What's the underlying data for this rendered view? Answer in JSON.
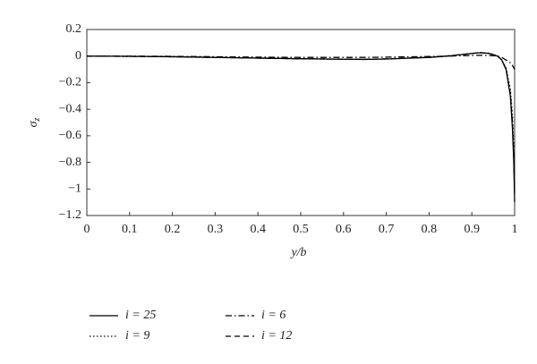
{
  "chart_data": {
    "type": "line",
    "x_label": "y/b",
    "y_label": {
      "symbol": "σ",
      "subscript": "z"
    },
    "x": [
      0,
      0.1,
      0.2,
      0.3,
      0.4,
      0.5,
      0.6,
      0.65,
      0.7,
      0.8,
      0.85,
      0.9,
      0.92,
      0.94,
      0.96,
      0.97,
      0.98,
      0.99,
      0.995,
      0.998,
      1
    ],
    "series": [
      {
        "name": "i = 25",
        "style": "solid",
        "color": "#000",
        "values": [
          0,
          -0.002,
          -0.005,
          -0.01,
          -0.015,
          -0.02,
          -0.024,
          -0.025,
          -0.022,
          -0.01,
          0.002,
          0.02,
          0.025,
          0.02,
          0,
          -0.03,
          -0.1,
          -0.3,
          -0.55,
          -0.8,
          -1.1
        ]
      },
      {
        "name": "i = 9",
        "style": "dotted",
        "color": "#000",
        "values": [
          0,
          -0.002,
          -0.005,
          -0.01,
          -0.015,
          -0.02,
          -0.024,
          -0.025,
          -0.022,
          -0.01,
          0.002,
          0.02,
          0.027,
          0.022,
          0.002,
          -0.03,
          -0.09,
          -0.25,
          -0.45,
          -0.7,
          -1.0
        ]
      },
      {
        "name": "i = 6",
        "style": "dashdot",
        "color": "#000",
        "values": [
          0,
          0,
          -0.002,
          -0.005,
          -0.008,
          -0.01,
          -0.01,
          -0.01,
          -0.008,
          -0.003,
          0,
          0.005,
          0.006,
          0.005,
          0,
          -0.01,
          -0.03,
          -0.05,
          -0.07,
          -0.09,
          -0.1
        ]
      },
      {
        "name": "i = 12",
        "style": "dashed",
        "color": "#000",
        "values": [
          0,
          -0.002,
          -0.005,
          -0.01,
          -0.015,
          -0.02,
          -0.023,
          -0.024,
          -0.021,
          -0.009,
          0.003,
          0.02,
          0.026,
          0.021,
          0.001,
          -0.03,
          -0.1,
          -0.28,
          -0.5,
          -0.75,
          -1.05
        ]
      }
    ],
    "xlim": [
      0,
      1
    ],
    "ylim": [
      -1.2,
      0.2
    ],
    "xticks": [
      0,
      0.1,
      0.2,
      0.3,
      0.4,
      0.5,
      0.6,
      0.7,
      0.8,
      0.9,
      1
    ],
    "yticks": [
      0.2,
      0,
      {
        "value": -0.2,
        "label": "−0.2"
      },
      {
        "value": -0.4,
        "label": "−0.4"
      },
      {
        "value": -0.6,
        "label": "−0.6"
      },
      {
        "value": -0.8,
        "label": "−0.8"
      },
      {
        "value": -1,
        "label": "−1"
      },
      {
        "value": -1.2,
        "label": "−1.2"
      }
    ],
    "grid": false,
    "legend": "bottom"
  }
}
